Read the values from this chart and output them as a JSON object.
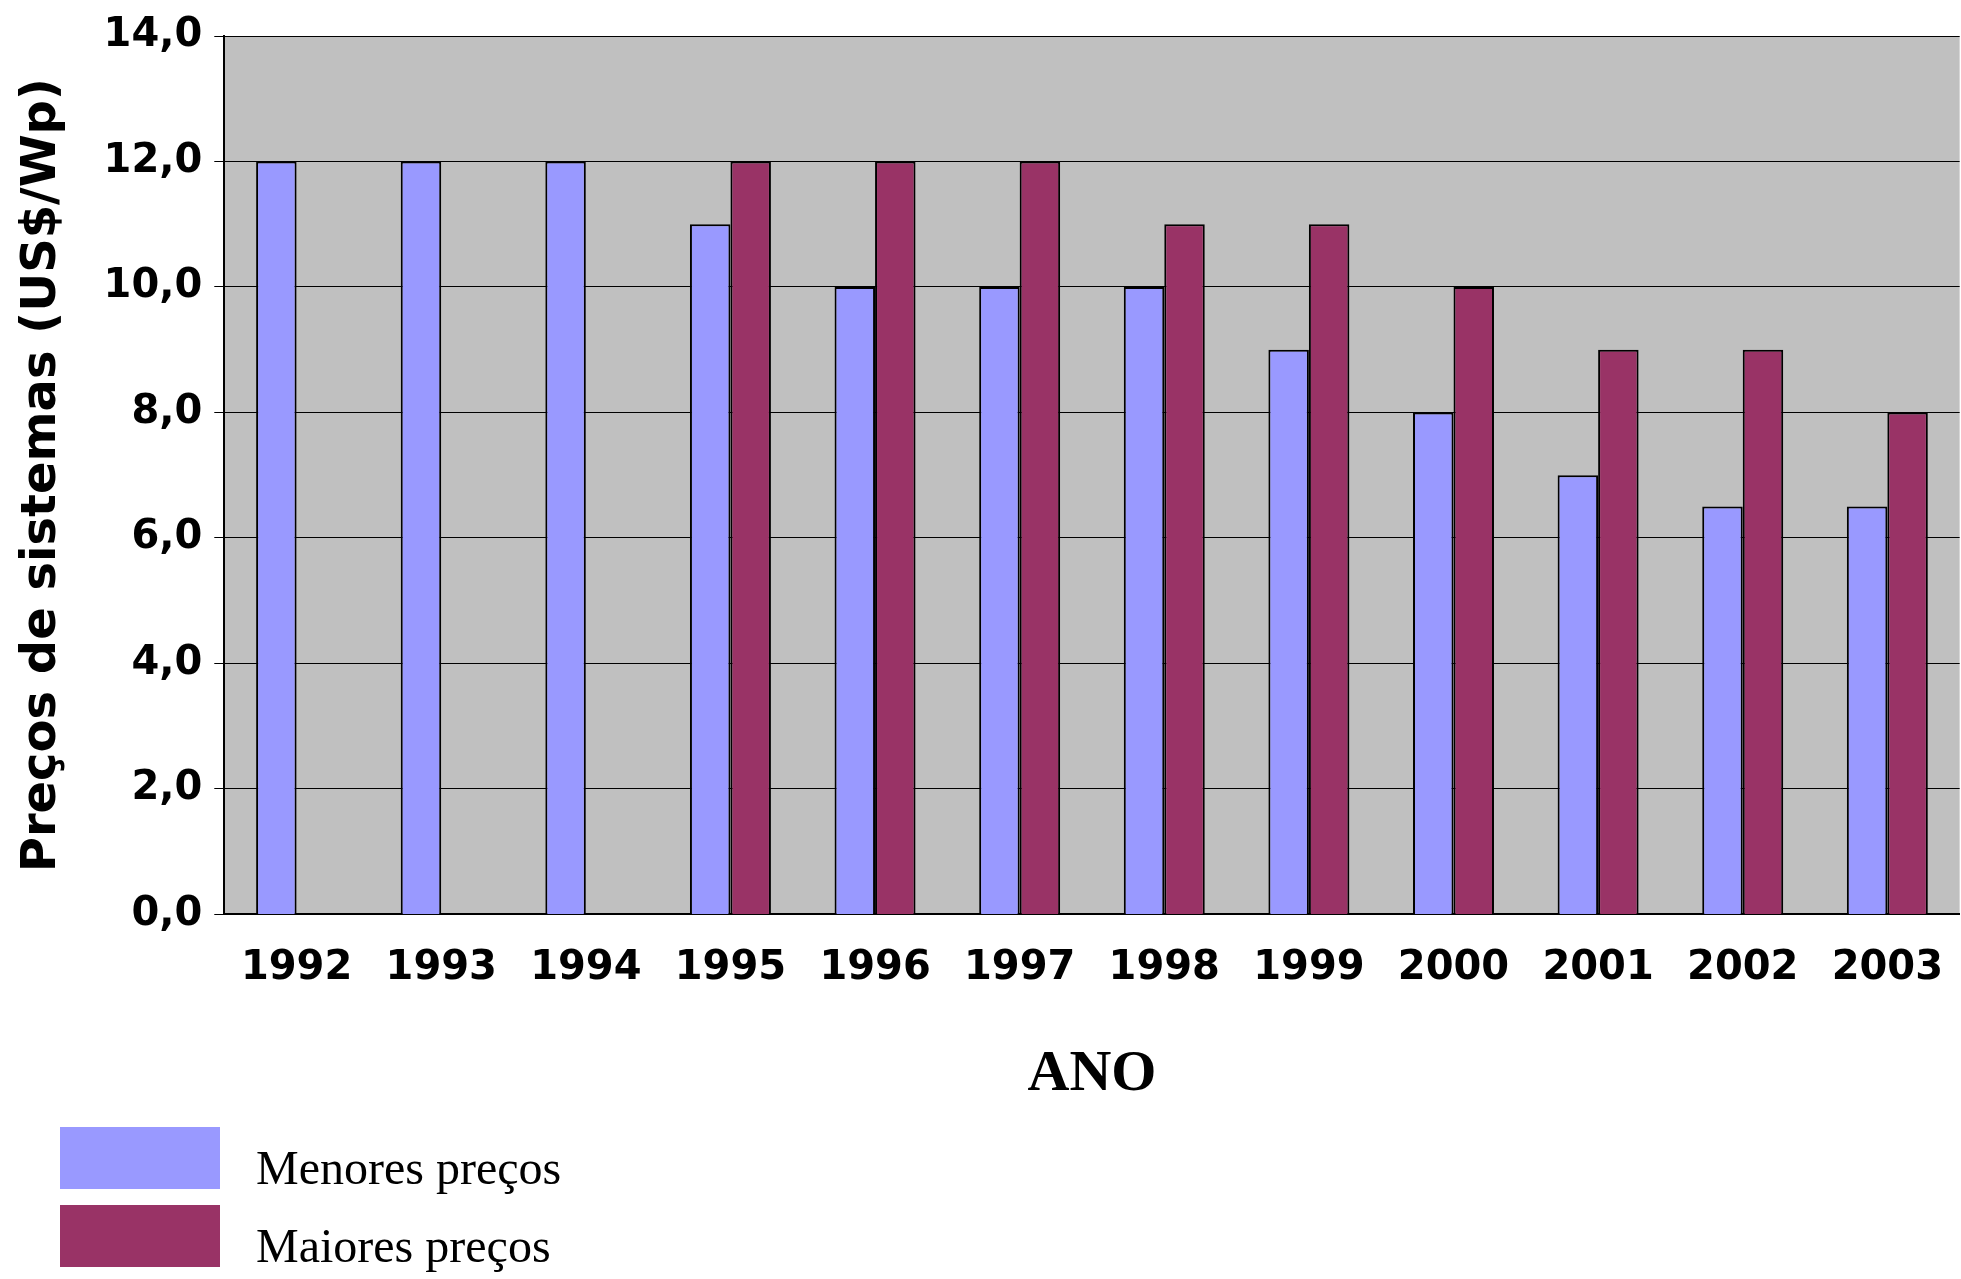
{
  "chart_data": {
    "type": "bar",
    "xlabel": "ANO",
    "ylabel": "Preços de sistemas (US$/Wp)",
    "categories": [
      "1992",
      "1993",
      "1994",
      "1995",
      "1996",
      "1997",
      "1998",
      "1999",
      "2000",
      "2001",
      "2002",
      "2003"
    ],
    "series": [
      {
        "name": "Menores preços",
        "color": "#9999ff",
        "values": [
          12,
          12,
          12,
          11,
          10,
          10,
          10,
          9,
          8,
          7,
          6.5,
          6.5
        ]
      },
      {
        "name": "Maiores preços",
        "color": "#993366",
        "values": [
          null,
          null,
          null,
          12,
          12,
          12,
          11,
          11,
          10,
          9,
          9,
          8
        ]
      }
    ],
    "ylim": [
      0,
      14
    ],
    "yticks": [
      {
        "value": 0,
        "label": "0,0"
      },
      {
        "value": 2,
        "label": "2,0"
      },
      {
        "value": 4,
        "label": "4,0"
      },
      {
        "value": 6,
        "label": "6,0"
      },
      {
        "value": 8,
        "label": "8,0"
      },
      {
        "value": 10,
        "label": "10,0"
      },
      {
        "value": 12,
        "label": "12,0"
      },
      {
        "value": 14,
        "label": "14,0"
      }
    ],
    "grid": "y",
    "legend": "bottom left"
  }
}
